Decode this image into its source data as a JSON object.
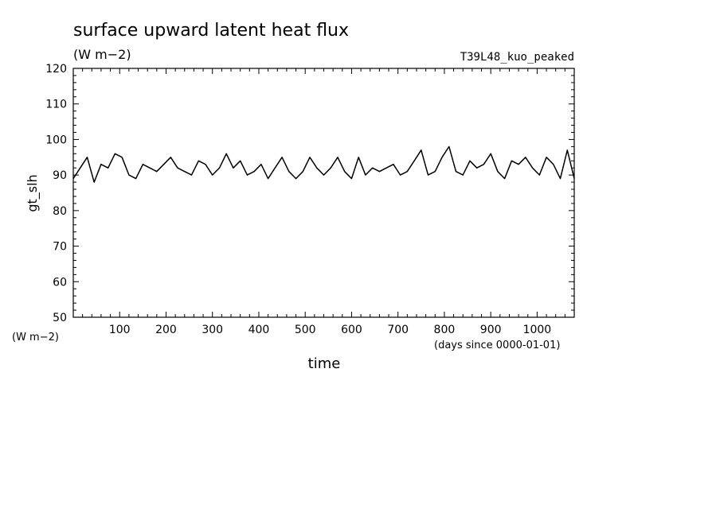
{
  "chart_data": {
    "type": "line",
    "title": "surface upward latent heat flux",
    "title_unit": "(W m−2)",
    "experiment": "T39L48_kuo_peaked",
    "xlabel": "time",
    "x_unit": "(days since 0000-01-01)",
    "ylabel": "gt_slh",
    "y_unit": "(W m−2)",
    "xlim": [
      0,
      1080
    ],
    "ylim": [
      50,
      120
    ],
    "x_ticks": [
      100,
      200,
      300,
      400,
      500,
      600,
      700,
      800,
      900,
      1000
    ],
    "x_tick_labels": [
      "100",
      "200",
      "300",
      "400",
      "500",
      "600",
      "700",
      "800",
      "900",
      "1000"
    ],
    "y_ticks": [
      50,
      60,
      70,
      80,
      90,
      100,
      110,
      120
    ],
    "y_tick_labels": [
      "50",
      "60",
      "70",
      "80",
      "90",
      "100",
      "110",
      "120"
    ],
    "grid": false,
    "line_color": "#000000",
    "series": [
      {
        "x": [
          0,
          15,
          30,
          45,
          60,
          75,
          90,
          105,
          120,
          135,
          150,
          165,
          180,
          195,
          210,
          225,
          240,
          255,
          270,
          285,
          300,
          315,
          330,
          345,
          360,
          375,
          390,
          405,
          420,
          435,
          450,
          465,
          480,
          495,
          510,
          525,
          540,
          555,
          570,
          585,
          600,
          615,
          630,
          645,
          660,
          675,
          690,
          705,
          720,
          735,
          750,
          765,
          780,
          795,
          810,
          825,
          840,
          855,
          870,
          885,
          900,
          915,
          930,
          945,
          960,
          975,
          990,
          1005,
          1020,
          1035,
          1050,
          1065,
          1080
        ],
        "y": [
          89,
          92,
          95,
          88,
          93,
          92,
          96,
          95,
          90,
          89,
          93,
          92,
          91,
          93,
          95,
          92,
          91,
          90,
          94,
          93,
          90,
          92,
          96,
          92,
          94,
          90,
          91,
          93,
          89,
          92,
          95,
          91,
          89,
          91,
          95,
          92,
          90,
          92,
          95,
          91,
          89,
          95,
          90,
          92,
          91,
          92,
          93,
          90,
          91,
          94,
          97,
          90,
          91,
          95,
          98,
          91,
          90,
          94,
          92,
          93,
          96,
          91,
          89,
          94,
          93,
          95,
          92,
          90,
          95,
          93,
          89,
          97,
          89
        ]
      }
    ]
  }
}
